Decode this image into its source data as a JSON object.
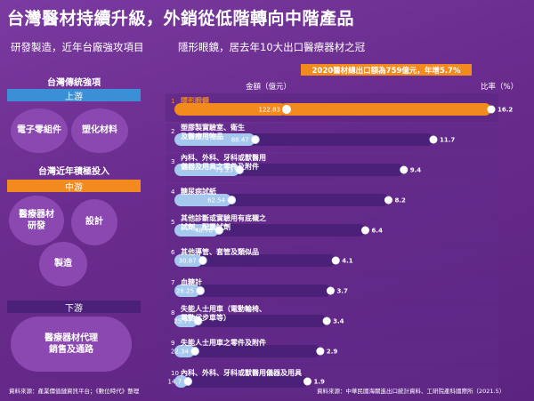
{
  "title": "台灣醫材持續升級，外銷從低階轉向中階產品",
  "left_panel": {
    "subtitle": "研發製造，近年台廠強攻項目",
    "traditional_heading": "台灣傳統強項",
    "upstream_label": "上游",
    "traditional_items": [
      "電子零組件",
      "塑化材料"
    ],
    "recent_heading": "台灣近年積極投入",
    "midstream_label": "中游",
    "recent_items": [
      "醫療器材\n研發",
      "設計",
      "製造"
    ],
    "downstream_label": "下游",
    "downstream_items": [
      "醫療器材代理\n銷售及通路"
    ],
    "source": "資料來源：產業價值鏈資訊平台；《數位時代》整理"
  },
  "right_panel": {
    "subtitle": "隱形眼鏡，居去年10大出口醫療器材之冠",
    "headline": "2020醫材總出口額為759億元，年增5.7%",
    "source": "資料來源：中華民國海關進出口統計資料、工研院產科國際所（2021.5）"
  },
  "colors": {
    "background": "#6a2c8e",
    "highlight_bar": "#f28a1e",
    "amount_bar": "#a6c8ee",
    "percent_bar": "#4a2078",
    "band_upstream": "#3b8fd6",
    "band_midstream": "#f28a1e",
    "band_downstream": "#4a2078"
  },
  "chart_data": {
    "type": "bar",
    "orientation": "horizontal",
    "categories": [
      "隱形眼鏡",
      "塑膠製實驗室、衛生\n及醫療用物品",
      "內科、外科、牙科或獸醫用\n儀器及用具之零件及附件",
      "糖尿病試紙",
      "其他診斷或實驗用有底襯之\n試劑、配置試劑",
      "其他導管、套管及類似品",
      "血糖計",
      "失能人士用車（電動輪椅、\n電動代步車等）",
      "失能人士用車之零件及附件",
      "內科、外科、牙科或獸醫用儀器及用具"
    ],
    "ranks": [
      "1",
      "2",
      "3",
      "4",
      "5",
      "6",
      "7",
      "8",
      "9",
      "10"
    ],
    "series": [
      {
        "name": "金額（億元）",
        "values": [
          122.83,
          88.47,
          71.23,
          62.54,
          48.76,
          30.87,
          28.25,
          25.77,
          22.34,
          14.7
        ]
      },
      {
        "name": "比率（%）",
        "values": [
          16.2,
          11.7,
          9.4,
          8.2,
          6.4,
          4.1,
          3.7,
          3.4,
          2.9,
          1.9
        ]
      }
    ],
    "highlight_index": 0
  }
}
